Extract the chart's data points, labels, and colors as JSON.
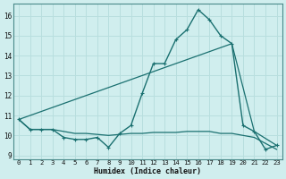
{
  "xlabel": "Humidex (Indice chaleur)",
  "bg_color": "#d0eeee",
  "grid_color": "#b8dede",
  "line_color": "#1a7070",
  "xlim": [
    -0.5,
    23.5
  ],
  "ylim": [
    8.8,
    16.6
  ],
  "yticks": [
    9,
    10,
    11,
    12,
    13,
    14,
    15,
    16
  ],
  "xticks": [
    0,
    1,
    2,
    3,
    4,
    5,
    6,
    7,
    8,
    9,
    10,
    11,
    12,
    13,
    14,
    15,
    16,
    17,
    18,
    19,
    20,
    21,
    22,
    23
  ],
  "line1_x": [
    0,
    1,
    2,
    3,
    4,
    5,
    6,
    7,
    8,
    9,
    10,
    11,
    12,
    13,
    14,
    15,
    16,
    17,
    18,
    19,
    20,
    21,
    22,
    23
  ],
  "line1_y": [
    10.8,
    10.3,
    10.3,
    10.3,
    9.9,
    9.8,
    9.8,
    9.9,
    9.4,
    10.1,
    10.5,
    12.1,
    13.6,
    13.6,
    14.8,
    15.3,
    16.3,
    15.8,
    15.0,
    14.6,
    10.5,
    10.2,
    9.3,
    9.5
  ],
  "line2_x": [
    0,
    19,
    21,
    23
  ],
  "line2_y": [
    10.8,
    14.6,
    10.2,
    9.5
  ],
  "line3_x": [
    0,
    1,
    2,
    3,
    4,
    5,
    6,
    7,
    8,
    9,
    10,
    11,
    12,
    13,
    14,
    15,
    16,
    17,
    18,
    19,
    20,
    21,
    22,
    23
  ],
  "line3_y": [
    10.8,
    10.3,
    10.3,
    10.3,
    10.2,
    10.1,
    10.1,
    10.05,
    10.0,
    10.05,
    10.1,
    10.1,
    10.15,
    10.15,
    10.15,
    10.2,
    10.2,
    10.2,
    10.1,
    10.1,
    10.0,
    9.9,
    9.6,
    9.3
  ]
}
